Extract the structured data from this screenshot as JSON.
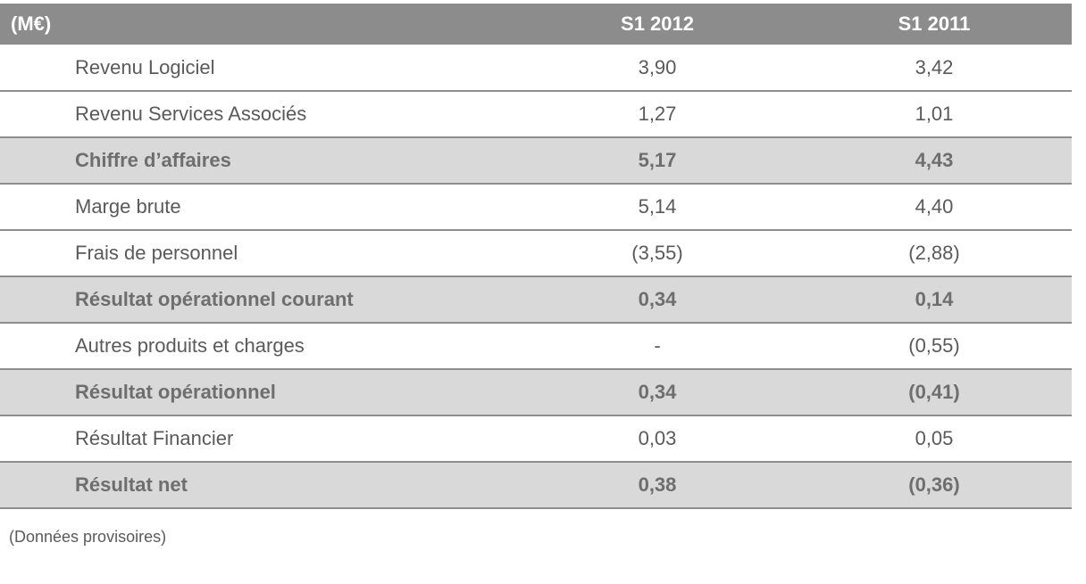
{
  "table": {
    "headers": {
      "label": "(M€)",
      "col1": "S1 2012",
      "col2": "S1 2011"
    },
    "rows": [
      {
        "label": "Revenu Logiciel",
        "s1_2012": "3,90",
        "s1_2011": "3,42",
        "total": false
      },
      {
        "label": "Revenu Services Associés",
        "s1_2012": "1,27",
        "s1_2011": "1,01",
        "total": false
      },
      {
        "label": "Chiffre d’affaires",
        "s1_2012": "5,17",
        "s1_2011": "4,43",
        "total": true
      },
      {
        "label": "Marge brute",
        "s1_2012": "5,14",
        "s1_2011": "4,40",
        "total": false
      },
      {
        "label": "Frais de personnel",
        "s1_2012": "(3,55)",
        "s1_2011": "(2,88)",
        "total": false
      },
      {
        "label": "Résultat opérationnel courant",
        "s1_2012": "0,34",
        "s1_2011": "0,14",
        "total": true
      },
      {
        "label": "Autres produits et charges",
        "s1_2012": "-",
        "s1_2011": "(0,55)",
        "total": false
      },
      {
        "label": "Résultat opérationnel",
        "s1_2012": "0,34",
        "s1_2011": "(0,41)",
        "total": true
      },
      {
        "label": "Résultat Financier",
        "s1_2012": "0,03",
        "s1_2011": "0,05",
        "total": false
      },
      {
        "label": "Résultat net",
        "s1_2012": "0,38",
        "s1_2011": "(0,36)",
        "total": true
      }
    ]
  },
  "footnote": "(Données provisoires)",
  "colors": {
    "header_bg": "#8c8c8c",
    "total_row_bg": "#d9d9d9",
    "divider": "#8e8e8e"
  }
}
